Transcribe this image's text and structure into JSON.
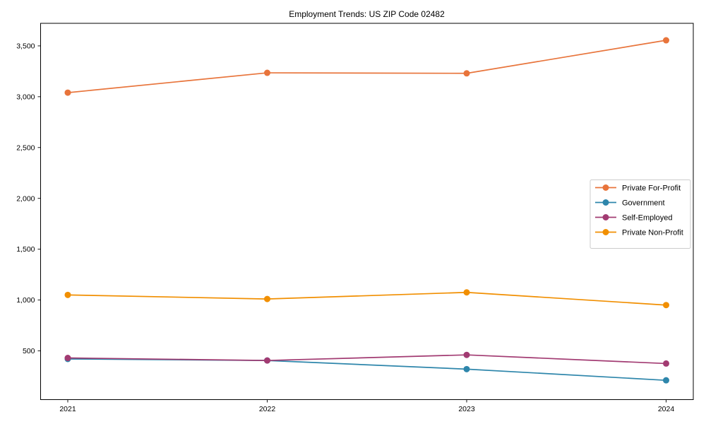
{
  "chart_data": {
    "type": "line",
    "title": "Employment Trends: US ZIP Code 02482",
    "x": [
      "2021",
      "2022",
      "2023",
      "2024"
    ],
    "series": [
      {
        "name": "Private For-Profit",
        "color": "#E8743B",
        "values": [
          3040,
          3235,
          3230,
          3555
        ]
      },
      {
        "name": "Government",
        "color": "#2E86AB",
        "values": [
          420,
          405,
          320,
          210
        ]
      },
      {
        "name": "Self-Employed",
        "color": "#A23B72",
        "values": [
          430,
          405,
          460,
          375
        ]
      },
      {
        "name": "Private Non-Profit",
        "color": "#F18F01",
        "values": [
          1050,
          1010,
          1075,
          950
        ]
      }
    ],
    "yticks": [
      500,
      1000,
      1500,
      2000,
      2500,
      3000,
      3500
    ],
    "ytick_labels": [
      "500",
      "1,000",
      "1,500",
      "2,000",
      "2,500",
      "3,000",
      "3,500"
    ],
    "ylim": [
      20,
      3722
    ],
    "xlabel": "",
    "ylabel": "",
    "grid": false,
    "legend": {
      "position": "center-right",
      "entries": [
        "Private For-Profit",
        "Government",
        "Self-Employed",
        "Private Non-Profit"
      ],
      "border_color": "#cccccc",
      "background": "#ffffff"
    },
    "axes": {
      "spine_color": "#000000",
      "background": "#ffffff"
    }
  }
}
